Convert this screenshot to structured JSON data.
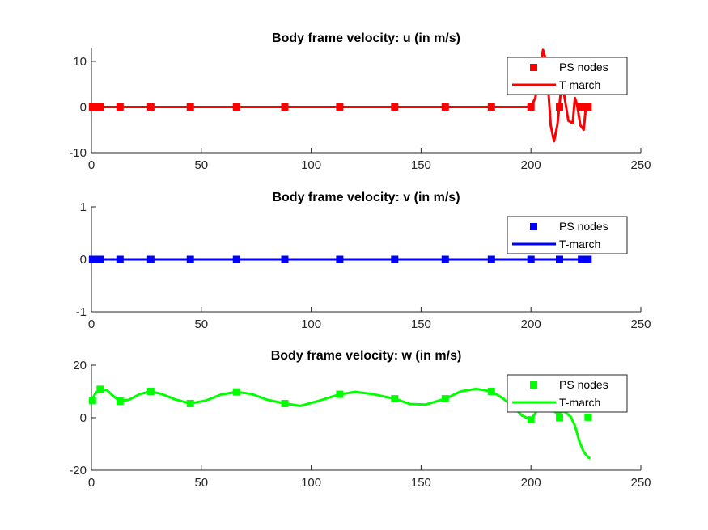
{
  "chart_data": [
    {
      "type": "line",
      "title": "Body frame velocity: u (in m/s)",
      "xlim": [
        0,
        250
      ],
      "ylim": [
        -10,
        13
      ],
      "xticks": [
        "0",
        "50",
        "100",
        "150",
        "200",
        "250"
      ],
      "yticks": [
        -10,
        0,
        10
      ],
      "ytick_labels": [
        "-10",
        "0",
        "10"
      ],
      "color": "#ff0000",
      "legend_position": "top-right",
      "series": [
        {
          "name": "PS nodes",
          "kind": "markers",
          "x": [
            0.5,
            2,
            4,
            13,
            27,
            45,
            66,
            88,
            113,
            138,
            161,
            182,
            200,
            213,
            223,
            226
          ],
          "y": [
            0,
            0,
            0,
            0,
            0,
            0,
            0,
            0,
            0,
            0,
            0,
            0,
            0,
            0,
            0,
            0
          ]
        },
        {
          "name": "T-march",
          "kind": "line",
          "x": [
            0,
            200,
            202,
            204,
            205.5,
            207,
            208,
            209,
            210.5,
            212,
            213.5,
            215,
            217,
            219,
            220,
            221,
            222.5,
            224,
            225,
            226,
            227
          ],
          "y": [
            0,
            0,
            2,
            8,
            12.5,
            10,
            3,
            -4,
            -7.5,
            -4,
            3,
            3,
            -3,
            -3.5,
            2,
            0.5,
            -4,
            -5,
            0,
            0,
            0
          ]
        }
      ]
    },
    {
      "type": "line",
      "title": "Body frame velocity: v (in m/s)",
      "xlim": [
        0,
        250
      ],
      "ylim": [
        -1,
        1
      ],
      "xticks": [
        "0",
        "50",
        "100",
        "150",
        "200",
        "250"
      ],
      "yticks": [
        -1,
        0,
        1
      ],
      "ytick_labels": [
        "-1",
        "0",
        "1"
      ],
      "color": "#0000ff",
      "legend_position": "top-right",
      "series": [
        {
          "name": "PS nodes",
          "kind": "markers",
          "x": [
            0.5,
            2,
            4,
            13,
            27,
            45,
            66,
            88,
            113,
            138,
            161,
            182,
            200,
            213,
            223,
            226
          ],
          "y": [
            0,
            0,
            0,
            0,
            0,
            0,
            0,
            0,
            0,
            0,
            0,
            0,
            0,
            0,
            0,
            0
          ]
        },
        {
          "name": "T-march",
          "kind": "line",
          "x": [
            0,
            227
          ],
          "y": [
            0,
            0
          ]
        }
      ]
    },
    {
      "type": "line",
      "title": "Body frame velocity: w (in m/s)",
      "xlim": [
        0,
        250
      ],
      "ylim": [
        -20,
        20
      ],
      "xticks": [
        "0",
        "50",
        "100",
        "150",
        "200",
        "250"
      ],
      "yticks": [
        -20,
        0,
        20
      ],
      "ytick_labels": [
        "-20",
        "0",
        "20"
      ],
      "color": "#00ff00",
      "legend_position": "top-right",
      "series": [
        {
          "name": "PS nodes",
          "kind": "markers",
          "x": [
            0.5,
            4,
            13,
            27,
            45,
            66,
            88,
            113,
            138,
            161,
            182,
            200,
            213,
            226
          ],
          "y": [
            6.5,
            10.8,
            6.3,
            10,
            5.4,
            9.8,
            5.4,
            8.9,
            7.2,
            7.2,
            10,
            -0.8,
            0,
            0.2
          ]
        },
        {
          "name": "T-march",
          "kind": "line",
          "x": [
            0,
            2,
            4,
            7,
            10,
            13,
            17,
            22,
            27,
            32,
            38,
            45,
            52,
            59,
            66,
            73,
            80,
            88,
            95,
            103,
            113,
            120,
            128,
            138,
            145,
            152,
            161,
            168,
            175,
            182,
            187,
            192,
            196,
            200,
            203,
            206,
            209,
            212,
            215,
            218,
            220,
            222,
            224,
            226,
            227
          ],
          "y": [
            6.5,
            9.5,
            10.8,
            10.5,
            8.2,
            6.3,
            6.8,
            9,
            10,
            9,
            7,
            5.4,
            6.5,
            8.8,
            9.8,
            9,
            6.8,
            5.4,
            4.5,
            6.3,
            8.9,
            9.8,
            9,
            7.2,
            5.2,
            5,
            7.2,
            10,
            11,
            10,
            7.5,
            4,
            0.8,
            -0.8,
            3,
            6.5,
            3.5,
            1.5,
            2.5,
            0.5,
            -3,
            -9,
            -13,
            -15,
            -15.5
          ]
        }
      ]
    }
  ]
}
